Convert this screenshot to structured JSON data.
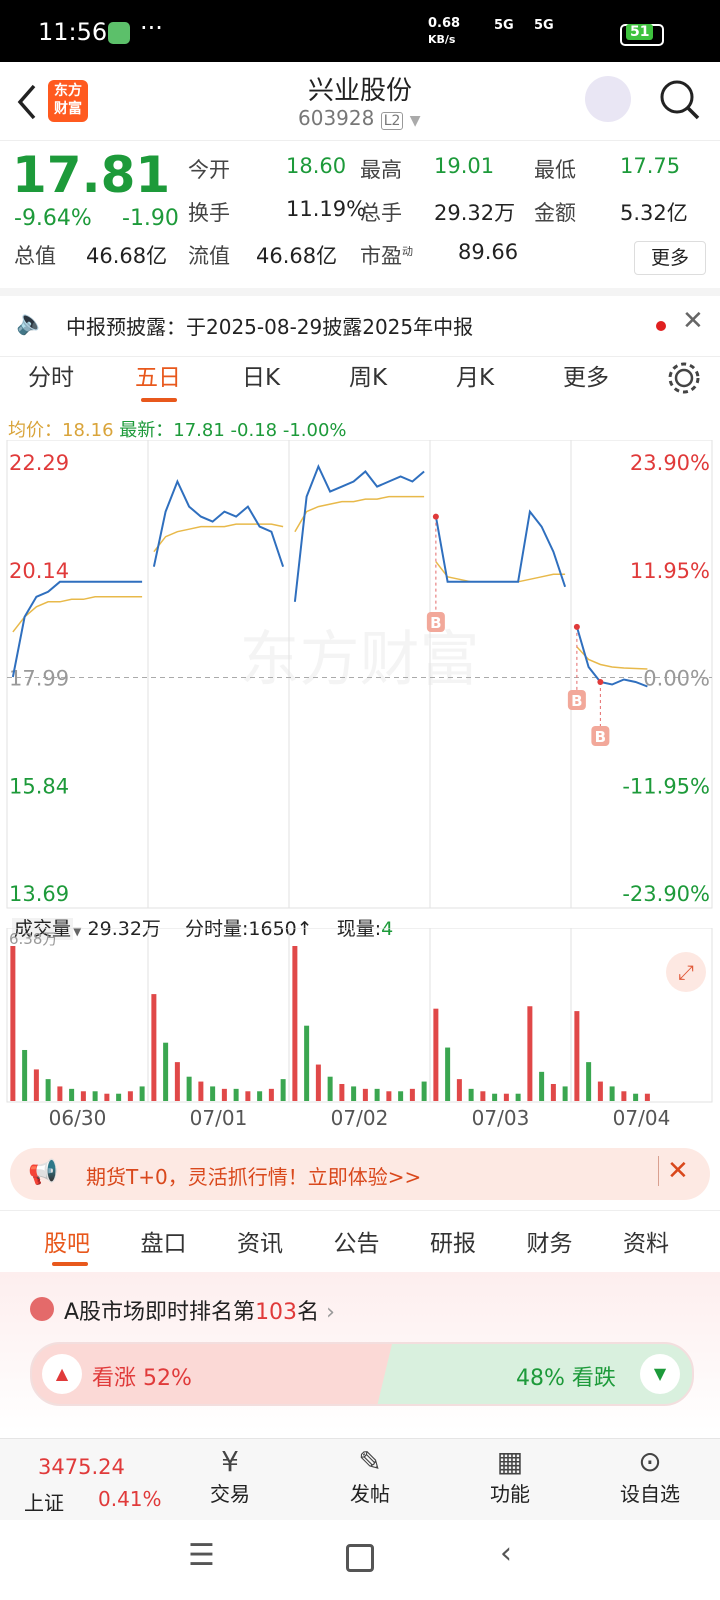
{
  "status_bar": {
    "time": "11:56",
    "net_speed": "0.68",
    "net_unit": "KB/s",
    "signal1": "5G",
    "signal2": "5G",
    "battery": "51"
  },
  "header": {
    "logo": [
      "东方",
      "财富"
    ],
    "title": "兴业股份",
    "code": "603928",
    "level": "L2"
  },
  "quote": {
    "price": "17.81",
    "change_pct": "-9.64%",
    "change": "-1.90",
    "fields": [
      {
        "label": "今开",
        "value": "18.60"
      },
      {
        "label": "最高",
        "value": "19.01"
      },
      {
        "label": "最低",
        "value": "17.75"
      },
      {
        "label": "换手",
        "value": "11.19%"
      },
      {
        "label": "总手",
        "value": "29.32万"
      },
      {
        "label": "金额",
        "value": "5.32亿"
      },
      {
        "label": "总值",
        "value": "46.68亿"
      },
      {
        "label": "流值",
        "value": "46.68亿"
      },
      {
        "label": "市盈",
        "value": "89.66"
      }
    ],
    "pe_sup": "动",
    "more": "更多"
  },
  "notice": "中报预披露：于2025-08-29披露2025年中报",
  "chart_tabs": [
    "分时",
    "五日",
    "日K",
    "周K",
    "月K",
    "更多"
  ],
  "summary": {
    "avg_label": "均价：",
    "avg": "18.16",
    "latest_label": "最新：",
    "latest": "17.81",
    "diff": "-0.18",
    "diff_pct": "-1.00%"
  },
  "chart_data": {
    "type": "line",
    "ylim": [
      13.69,
      22.29
    ],
    "yticks": [
      22.29,
      20.14,
      17.99,
      15.84,
      13.69
    ],
    "y2lim": [
      -23.9,
      23.9
    ],
    "y2ticks": [
      {
        "value": 23.9,
        "label": "23.90%"
      },
      {
        "value": 11.95,
        "label": "11.95%"
      },
      {
        "value": 0,
        "label": "0.00%"
      },
      {
        "value": -11.95,
        "label": "-11.95%"
      },
      {
        "value": -23.9,
        "label": "-23.90%"
      }
    ],
    "price_color": "#2f6fbe",
    "avg_color": "#e8b94a",
    "watermark": "东方财富",
    "signal_label": "B",
    "days": [
      {
        "date": "06/30",
        "price": [
          18.0,
          19.2,
          19.6,
          19.7,
          19.9,
          19.9,
          19.9,
          19.9,
          19.9,
          19.9,
          19.9,
          19.9
        ],
        "avg": [
          18.9,
          19.2,
          19.4,
          19.5,
          19.5,
          19.55,
          19.55,
          19.6,
          19.6,
          19.6,
          19.6,
          19.6
        ]
      },
      {
        "date": "07/01",
        "price": [
          20.2,
          21.3,
          21.9,
          21.4,
          21.2,
          21.1,
          21.3,
          21.2,
          21.4,
          21.0,
          20.9,
          20.2
        ],
        "avg": [
          20.5,
          20.8,
          20.9,
          20.95,
          21.0,
          21.0,
          21.0,
          21.05,
          21.05,
          21.05,
          21.05,
          21.0
        ]
      },
      {
        "date": "07/02",
        "price": [
          19.5,
          21.6,
          22.2,
          21.7,
          21.8,
          21.9,
          22.1,
          21.8,
          21.9,
          22.0,
          21.9,
          22.1
        ],
        "avg": [
          20.9,
          21.3,
          21.4,
          21.45,
          21.5,
          21.5,
          21.55,
          21.55,
          21.6,
          21.6,
          21.6,
          21.6
        ]
      },
      {
        "date": "07/03",
        "price": [
          21.2,
          19.9,
          19.9,
          19.9,
          19.9,
          19.9,
          19.9,
          19.9,
          21.3,
          21.0,
          20.5,
          19.8
        ],
        "avg": [
          20.3,
          20.0,
          19.95,
          19.9,
          19.9,
          19.9,
          19.9,
          19.9,
          19.95,
          20.0,
          20.05,
          20.05
        ]
      },
      {
        "date": "07/04",
        "price": [
          19.0,
          18.2,
          17.9,
          17.85,
          17.95,
          17.9,
          17.81
        ],
        "avg": [
          18.6,
          18.35,
          18.25,
          18.2,
          18.18,
          18.17,
          18.16
        ]
      }
    ]
  },
  "volume_row": {
    "label": "成交量",
    "total": "29.32万",
    "minute": "分时量:1650↑",
    "now_label": "现量:",
    "now": "4"
  },
  "volume_chart": {
    "type": "bar",
    "ylim": [
      0,
      6.38
    ],
    "yticks": [
      {
        "value": 6.38,
        "label": "6.38万"
      }
    ],
    "colors": [
      "#e04848",
      "#3aa650"
    ],
    "days": [
      [
        6.38,
        2.1,
        1.3,
        0.9,
        0.6,
        0.5,
        0.4,
        0.4,
        0.3,
        0.3,
        0.4,
        0.6
      ],
      [
        4.4,
        2.4,
        1.6,
        1.0,
        0.8,
        0.6,
        0.5,
        0.5,
        0.4,
        0.4,
        0.5,
        0.9
      ],
      [
        6.38,
        3.1,
        1.5,
        1.0,
        0.7,
        0.6,
        0.5,
        0.5,
        0.4,
        0.4,
        0.5,
        0.8
      ],
      [
        3.8,
        2.2,
        0.9,
        0.5,
        0.4,
        0.3,
        0.3,
        0.3,
        3.9,
        1.2,
        0.7,
        0.6
      ],
      [
        3.7,
        1.6,
        0.8,
        0.6,
        0.4,
        0.3,
        0.3
      ]
    ]
  },
  "ad": "期货T+0，灵活抓行情！立即体验>>",
  "info_tabs": [
    "股吧",
    "盘口",
    "资讯",
    "公告",
    "研报",
    "财务",
    "资料"
  ],
  "ranking": {
    "prefix": "A股市场即时排名第",
    "rank": "103",
    "suffix": "名"
  },
  "sentiment": {
    "up": "看涨 52%",
    "down": "48% 看跌"
  },
  "bottom_nav": {
    "index_value": "3475.24",
    "index_name": "上证",
    "index_change": "0.41%",
    "items": [
      "交易",
      "发帖",
      "功能",
      "设自选"
    ]
  }
}
